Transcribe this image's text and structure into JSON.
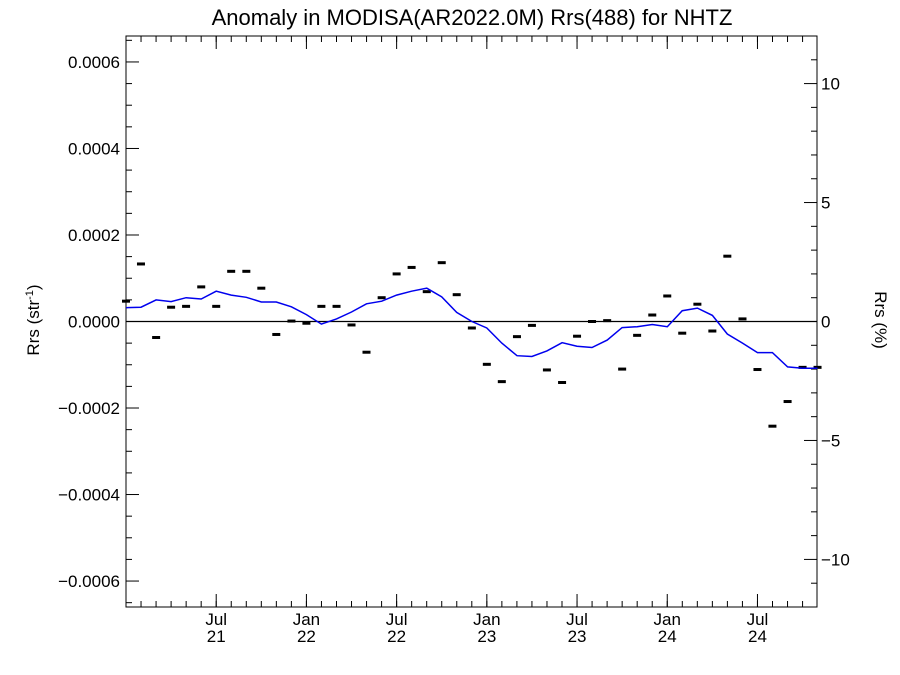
{
  "chart_data": {
    "type": "scatter",
    "title": "Anomaly in MODISA(AR2022.0M) Rrs(488) for NHTZ",
    "ylabel_left": "Rrs (str",
    "ylabel_left_sup": "-1",
    "ylabel_left_close": ")",
    "ylabel_right": "Rrs (%)",
    "xlim": [
      2021.0,
      2024.83
    ],
    "ylim_left": [
      -0.00066,
      0.00066
    ],
    "ylim_right": [
      -12.0,
      12.0
    ],
    "x_ticks": [
      {
        "value": 2021.5,
        "month": "Jul",
        "year": "21"
      },
      {
        "value": 2022.0,
        "month": "Jan",
        "year": "22"
      },
      {
        "value": 2022.5,
        "month": "Jul",
        "year": "22"
      },
      {
        "value": 2023.0,
        "month": "Jan",
        "year": "23"
      },
      {
        "value": 2023.5,
        "month": "Jul",
        "year": "23"
      },
      {
        "value": 2024.0,
        "month": "Jan",
        "year": "24"
      },
      {
        "value": 2024.5,
        "month": "Jul",
        "year": "24"
      }
    ],
    "y_left_ticks": [
      {
        "value": 0.0006,
        "label": "0.0006"
      },
      {
        "value": 0.0004,
        "label": "0.0004"
      },
      {
        "value": 0.0002,
        "label": "0.0002"
      },
      {
        "value": 0.0,
        "label": "0.0000"
      },
      {
        "value": -0.0002,
        "label": "−0.0002"
      },
      {
        "value": -0.0004,
        "label": "−0.0004"
      },
      {
        "value": -0.0006,
        "label": "−0.0006"
      }
    ],
    "y_right_ticks": [
      {
        "value": 10,
        "label": "10"
      },
      {
        "value": 5,
        "label": "5"
      },
      {
        "value": 0,
        "label": "0"
      },
      {
        "value": -5,
        "label": "−5"
      },
      {
        "value": -10,
        "label": "−10"
      }
    ],
    "zero_line": 0.0,
    "series": [
      {
        "kind": "monthly_anomaly_markers",
        "color": "#000000",
        "x": [
          2021.0,
          2021.083,
          2021.167,
          2021.25,
          2021.333,
          2021.417,
          2021.5,
          2021.583,
          2021.667,
          2021.75,
          2021.833,
          2021.917,
          2022.0,
          2022.083,
          2022.167,
          2022.25,
          2022.333,
          2022.417,
          2022.5,
          2022.583,
          2022.667,
          2022.75,
          2022.833,
          2022.917,
          2023.0,
          2023.083,
          2023.167,
          2023.25,
          2023.333,
          2023.417,
          2023.5,
          2023.583,
          2023.667,
          2023.75,
          2023.833,
          2023.917,
          2024.0,
          2024.083,
          2024.167,
          2024.25,
          2024.333,
          2024.417,
          2024.5,
          2024.583,
          2024.667,
          2024.75,
          2024.833
        ],
        "y": [
          4.7e-05,
          0.000133,
          -3.7e-05,
          3.3e-05,
          3.5e-05,
          8e-05,
          3.5e-05,
          0.000116,
          0.000116,
          7.7e-05,
          -3e-05,
          1e-06,
          -4e-06,
          3.5e-05,
          3.5e-05,
          -8e-06,
          -7.1e-05,
          5.5e-05,
          0.00011,
          0.000125,
          6.9e-05,
          0.000136,
          6.2e-05,
          -1.5e-05,
          -9.9e-05,
          -0.000139,
          -3.5e-05,
          -9e-06,
          -0.000112,
          -0.000141,
          -3.4e-05,
          0.0,
          2e-06,
          -0.00011,
          -3.2e-05,
          1.5e-05,
          5.9e-05,
          -2.7e-05,
          4e-05,
          -2.2e-05,
          0.000151,
          6e-06,
          -0.000111,
          -0.000242,
          -0.000185,
          -0.000106,
          -0.000106
        ]
      },
      {
        "kind": "running_mean_line",
        "color": "#0000ee",
        "x": [
          2021.0,
          2021.083,
          2021.167,
          2021.25,
          2021.333,
          2021.417,
          2021.5,
          2021.583,
          2021.667,
          2021.75,
          2021.833,
          2021.917,
          2022.0,
          2022.083,
          2022.167,
          2022.25,
          2022.333,
          2022.417,
          2022.5,
          2022.583,
          2022.667,
          2022.75,
          2022.833,
          2022.917,
          2023.0,
          2023.083,
          2023.167,
          2023.25,
          2023.333,
          2023.417,
          2023.5,
          2023.583,
          2023.667,
          2023.75,
          2023.833,
          2023.917,
          2024.0,
          2024.083,
          2024.167,
          2024.25,
          2024.333,
          2024.417,
          2024.5,
          2024.583,
          2024.667,
          2024.75,
          2024.833
        ],
        "y": [
          3.2e-05,
          3.3e-05,
          5e-05,
          4.6e-05,
          5.5e-05,
          5.2e-05,
          7e-05,
          6.1e-05,
          5.6e-05,
          4.5e-05,
          4.5e-05,
          3.4e-05,
          1.6e-05,
          -6e-06,
          6e-06,
          2.2e-05,
          4.1e-05,
          4.7e-05,
          6.1e-05,
          7e-05,
          7.7e-05,
          5.7e-05,
          2.1e-05,
          0.0,
          -1.5e-05,
          -5e-05,
          -7.9e-05,
          -8.1e-05,
          -6.8e-05,
          -4.9e-05,
          -5.7e-05,
          -6e-05,
          -4.3e-05,
          -1.4e-05,
          -1.2e-05,
          -7e-06,
          -1.2e-05,
          2.5e-05,
          3.1e-05,
          1.4e-05,
          -2.9e-05,
          -5e-05,
          -7.2e-05,
          -7.2e-05,
          -0.000105,
          -0.000108,
          -0.000108
        ]
      }
    ]
  }
}
